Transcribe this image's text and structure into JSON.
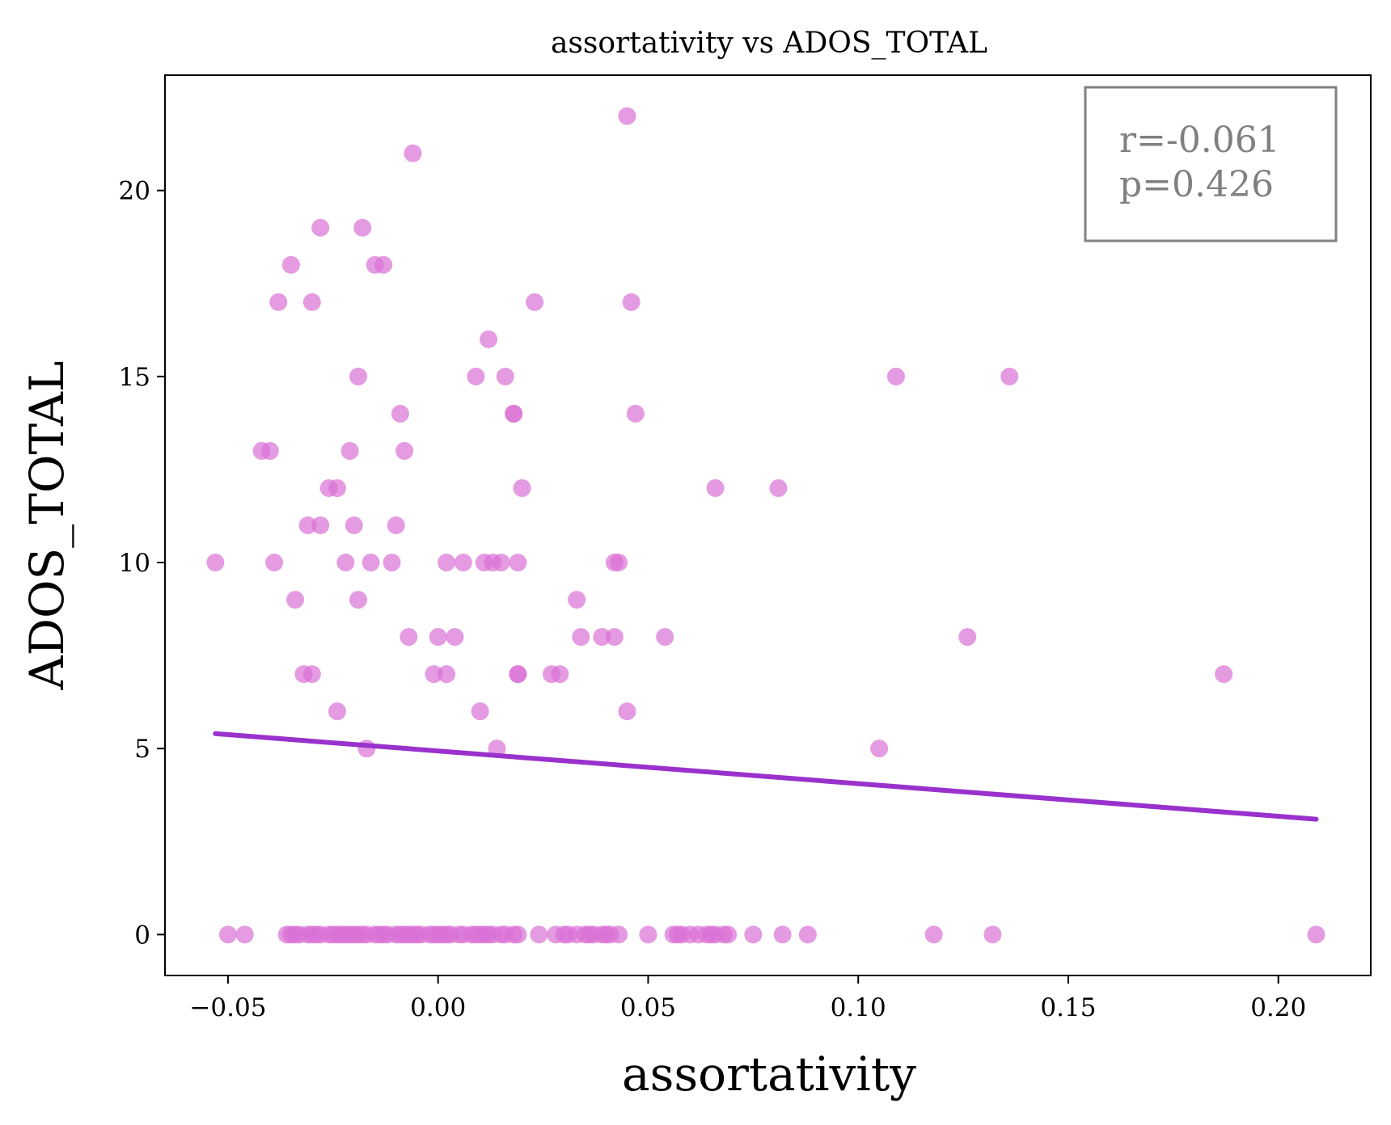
{
  "chart_data": {
    "type": "scatter",
    "title": "assortativity vs ADOS_TOTAL",
    "xlabel": "assortativity",
    "ylabel": "ADOS_TOTAL",
    "xlim": [
      -0.065,
      0.222
    ],
    "ylim": [
      -1.1,
      23.1
    ],
    "xticks": [
      -0.05,
      0.0,
      0.05,
      0.1,
      0.15,
      0.2
    ],
    "xtick_labels": [
      "−0.05",
      "0.00",
      "0.05",
      "0.10",
      "0.15",
      "0.20"
    ],
    "yticks": [
      0,
      5,
      10,
      15,
      20
    ],
    "ytick_labels": [
      "0",
      "5",
      "10",
      "15",
      "20"
    ],
    "grid": false,
    "annotation": {
      "lines": [
        "r=-0.061",
        "p=0.426"
      ],
      "placement": "top-right"
    },
    "colors": {
      "points": "#DA70D6",
      "regression": "#9932CC",
      "annotation_text": "#808080",
      "annotation_border": "#808080"
    },
    "regression": {
      "x": [
        -0.053,
        0.209
      ],
      "y": [
        5.4,
        3.1
      ]
    },
    "points": [
      {
        "x": -0.053,
        "y": 10
      },
      {
        "x": -0.042,
        "y": 13
      },
      {
        "x": -0.04,
        "y": 13
      },
      {
        "x": -0.038,
        "y": 17
      },
      {
        "x": -0.039,
        "y": 10
      },
      {
        "x": -0.035,
        "y": 18
      },
      {
        "x": -0.034,
        "y": 9
      },
      {
        "x": -0.032,
        "y": 7
      },
      {
        "x": -0.03,
        "y": 7
      },
      {
        "x": -0.031,
        "y": 11
      },
      {
        "x": -0.028,
        "y": 11
      },
      {
        "x": -0.03,
        "y": 17
      },
      {
        "x": -0.028,
        "y": 19
      },
      {
        "x": -0.026,
        "y": 12
      },
      {
        "x": -0.024,
        "y": 12
      },
      {
        "x": -0.024,
        "y": 6
      },
      {
        "x": -0.022,
        "y": 10
      },
      {
        "x": -0.021,
        "y": 13
      },
      {
        "x": -0.02,
        "y": 11
      },
      {
        "x": -0.019,
        "y": 15
      },
      {
        "x": -0.019,
        "y": 9
      },
      {
        "x": -0.018,
        "y": 19
      },
      {
        "x": -0.016,
        "y": 10
      },
      {
        "x": -0.017,
        "y": 5
      },
      {
        "x": -0.015,
        "y": 18
      },
      {
        "x": -0.013,
        "y": 18
      },
      {
        "x": -0.011,
        "y": 10
      },
      {
        "x": -0.01,
        "y": 11
      },
      {
        "x": -0.009,
        "y": 14
      },
      {
        "x": -0.008,
        "y": 13
      },
      {
        "x": -0.007,
        "y": 8
      },
      {
        "x": -0.006,
        "y": 21
      },
      {
        "x": -0.001,
        "y": 7
      },
      {
        "x": 0.0,
        "y": 8
      },
      {
        "x": 0.002,
        "y": 7
      },
      {
        "x": 0.002,
        "y": 10
      },
      {
        "x": 0.004,
        "y": 8
      },
      {
        "x": 0.006,
        "y": 10
      },
      {
        "x": 0.009,
        "y": 15
      },
      {
        "x": 0.01,
        "y": 6
      },
      {
        "x": 0.011,
        "y": 10
      },
      {
        "x": 0.012,
        "y": 16
      },
      {
        "x": 0.013,
        "y": 10
      },
      {
        "x": 0.014,
        "y": 5
      },
      {
        "x": 0.015,
        "y": 10
      },
      {
        "x": 0.016,
        "y": 15
      },
      {
        "x": 0.018,
        "y": 14
      },
      {
        "x": 0.018,
        "y": 14
      },
      {
        "x": 0.019,
        "y": 7
      },
      {
        "x": 0.019,
        "y": 7
      },
      {
        "x": 0.019,
        "y": 10
      },
      {
        "x": 0.02,
        "y": 12
      },
      {
        "x": 0.023,
        "y": 17
      },
      {
        "x": 0.027,
        "y": 7
      },
      {
        "x": 0.029,
        "y": 7
      },
      {
        "x": 0.033,
        "y": 9
      },
      {
        "x": 0.034,
        "y": 8
      },
      {
        "x": 0.039,
        "y": 8
      },
      {
        "x": 0.042,
        "y": 10
      },
      {
        "x": 0.043,
        "y": 10
      },
      {
        "x": 0.042,
        "y": 8
      },
      {
        "x": 0.045,
        "y": 22
      },
      {
        "x": 0.045,
        "y": 6
      },
      {
        "x": 0.046,
        "y": 17
      },
      {
        "x": 0.047,
        "y": 14
      },
      {
        "x": 0.054,
        "y": 8
      },
      {
        "x": 0.066,
        "y": 12
      },
      {
        "x": 0.081,
        "y": 12
      },
      {
        "x": 0.105,
        "y": 5
      },
      {
        "x": 0.109,
        "y": 15
      },
      {
        "x": 0.126,
        "y": 8
      },
      {
        "x": 0.136,
        "y": 15
      },
      {
        "x": 0.187,
        "y": 7
      },
      {
        "x": -0.05,
        "y": 0
      },
      {
        "x": -0.046,
        "y": 0
      },
      {
        "x": -0.036,
        "y": 0
      },
      {
        "x": -0.035,
        "y": 0
      },
      {
        "x": -0.034,
        "y": 0
      },
      {
        "x": -0.033,
        "y": 0
      },
      {
        "x": -0.031,
        "y": 0
      },
      {
        "x": -0.03,
        "y": 0
      },
      {
        "x": -0.029,
        "y": 0
      },
      {
        "x": -0.028,
        "y": 0
      },
      {
        "x": -0.026,
        "y": 0
      },
      {
        "x": -0.025,
        "y": 0
      },
      {
        "x": -0.024,
        "y": 0
      },
      {
        "x": -0.023,
        "y": 0
      },
      {
        "x": -0.022,
        "y": 0
      },
      {
        "x": -0.021,
        "y": 0
      },
      {
        "x": -0.02,
        "y": 0
      },
      {
        "x": -0.019,
        "y": 0
      },
      {
        "x": -0.018,
        "y": 0
      },
      {
        "x": -0.017,
        "y": 0
      },
      {
        "x": -0.015,
        "y": 0
      },
      {
        "x": -0.014,
        "y": 0
      },
      {
        "x": -0.013,
        "y": 0
      },
      {
        "x": -0.012,
        "y": 0
      },
      {
        "x": -0.01,
        "y": 0
      },
      {
        "x": -0.009,
        "y": 0
      },
      {
        "x": -0.008,
        "y": 0
      },
      {
        "x": -0.007,
        "y": 0
      },
      {
        "x": -0.006,
        "y": 0
      },
      {
        "x": -0.005,
        "y": 0
      },
      {
        "x": -0.004,
        "y": 0
      },
      {
        "x": -0.002,
        "y": 0
      },
      {
        "x": -0.001,
        "y": 0
      },
      {
        "x": 0.0,
        "y": 0
      },
      {
        "x": 0.001,
        "y": 0
      },
      {
        "x": 0.002,
        "y": 0
      },
      {
        "x": 0.003,
        "y": 0
      },
      {
        "x": 0.005,
        "y": 0
      },
      {
        "x": 0.006,
        "y": 0
      },
      {
        "x": 0.008,
        "y": 0
      },
      {
        "x": 0.009,
        "y": 0
      },
      {
        "x": 0.01,
        "y": 0
      },
      {
        "x": 0.011,
        "y": 0
      },
      {
        "x": 0.012,
        "y": 0
      },
      {
        "x": 0.013,
        "y": 0
      },
      {
        "x": 0.015,
        "y": 0
      },
      {
        "x": 0.016,
        "y": 0
      },
      {
        "x": 0.018,
        "y": 0
      },
      {
        "x": 0.019,
        "y": 0
      },
      {
        "x": 0.024,
        "y": 0
      },
      {
        "x": 0.028,
        "y": 0
      },
      {
        "x": 0.03,
        "y": 0
      },
      {
        "x": 0.031,
        "y": 0
      },
      {
        "x": 0.033,
        "y": 0
      },
      {
        "x": 0.035,
        "y": 0
      },
      {
        "x": 0.036,
        "y": 0
      },
      {
        "x": 0.037,
        "y": 0
      },
      {
        "x": 0.039,
        "y": 0
      },
      {
        "x": 0.04,
        "y": 0
      },
      {
        "x": 0.041,
        "y": 0
      },
      {
        "x": 0.043,
        "y": 0
      },
      {
        "x": 0.05,
        "y": 0
      },
      {
        "x": 0.056,
        "y": 0
      },
      {
        "x": 0.057,
        "y": 0
      },
      {
        "x": 0.058,
        "y": 0
      },
      {
        "x": 0.06,
        "y": 0
      },
      {
        "x": 0.062,
        "y": 0
      },
      {
        "x": 0.064,
        "y": 0
      },
      {
        "x": 0.065,
        "y": 0
      },
      {
        "x": 0.066,
        "y": 0
      },
      {
        "x": 0.068,
        "y": 0
      },
      {
        "x": 0.069,
        "y": 0
      },
      {
        "x": 0.075,
        "y": 0
      },
      {
        "x": 0.082,
        "y": 0
      },
      {
        "x": 0.088,
        "y": 0
      },
      {
        "x": 0.118,
        "y": 0
      },
      {
        "x": 0.132,
        "y": 0
      },
      {
        "x": 0.209,
        "y": 0
      }
    ]
  }
}
